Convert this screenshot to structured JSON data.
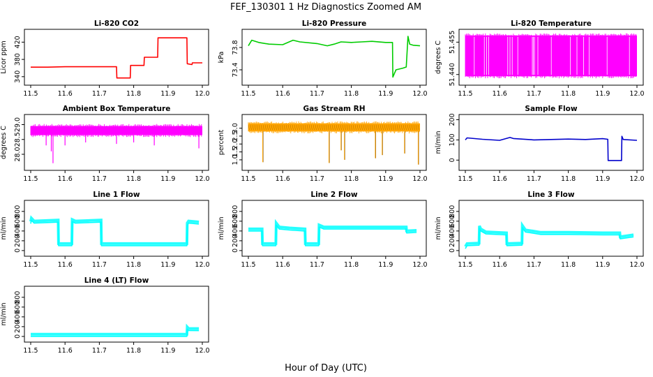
{
  "title": "FEF_130301  1 Hz Diagnostics Zoomed AM",
  "xlabel": "Hour of Day (UTC)",
  "x_ticks": [
    "11.5",
    "11.6",
    "11.7",
    "11.8",
    "11.9",
    "12.0"
  ],
  "chart_data": [
    {
      "type": "line",
      "title": "Li-820 CO2",
      "ylabel": "Licor ppm",
      "color": "#ff0000",
      "xlim": [
        11.5,
        12.0
      ],
      "ylim": [
        330,
        440
      ],
      "y_ticks": [
        "340",
        "380",
        "420"
      ],
      "series": [
        {
          "x": [
            11.5,
            11.55,
            11.6,
            11.65,
            11.7,
            11.75,
            11.751,
            11.79,
            11.791,
            11.83,
            11.831,
            11.87,
            11.871,
            11.955,
            11.956,
            11.97,
            11.971,
            12.0
          ],
          "y": [
            362,
            362,
            363,
            363,
            363,
            363,
            337,
            337,
            366,
            366,
            385,
            385,
            430,
            430,
            370,
            368,
            372,
            372
          ]
        }
      ]
    },
    {
      "type": "line",
      "title": "Li-820 Pressure",
      "ylabel": "kPa",
      "color": "#00cc00",
      "xlim": [
        11.5,
        12.0
      ],
      "ylim": [
        73.2,
        74.05
      ],
      "y_ticks": [
        "73.4",
        "73.8"
      ],
      "series": [
        {
          "x": [
            11.5,
            11.51,
            11.53,
            11.56,
            11.6,
            11.63,
            11.65,
            11.7,
            11.73,
            11.75,
            11.77,
            11.8,
            11.83,
            11.86,
            11.9,
            11.92,
            11.921,
            11.93,
            11.95,
            11.96,
            11.965,
            11.97,
            11.98,
            12.0
          ],
          "y": [
            73.83,
            73.93,
            73.89,
            73.86,
            73.85,
            73.93,
            73.9,
            73.87,
            73.83,
            73.86,
            73.9,
            73.89,
            73.9,
            73.91,
            73.89,
            73.89,
            73.27,
            73.4,
            73.43,
            73.45,
            74.0,
            73.86,
            73.84,
            73.83
          ]
        }
      ]
    },
    {
      "type": "line",
      "title": "Li-820 Temperature",
      "ylabel": "degrees C",
      "color": "#ff00ff",
      "xlim": [
        11.5,
        12.0
      ],
      "ylim": [
        51.437,
        51.459
      ],
      "y_ticks": [
        "51.440",
        "51.455"
      ],
      "series": [
        {
          "name": "band",
          "x": [
            11.5,
            12.0
          ],
          "y": [
            51.4392,
            51.4581
          ]
        }
      ]
    },
    {
      "type": "line",
      "title": "Ambient Box Temperature",
      "ylabel": "degrees C",
      "color": "#ff00ff",
      "xlim": [
        11.5,
        12.0
      ],
      "ylim": [
        27.6,
        29.2
      ],
      "y_ticks": [
        "28.0",
        "28.5",
        "29.0"
      ],
      "series": [
        {
          "name": "band",
          "x": [
            11.5,
            12.0
          ],
          "y": [
            28.65,
            28.95
          ]
        }
      ],
      "dips": [
        {
          "x": [
            11.545,
            11.56,
            11.565,
            11.6,
            11.66,
            11.75,
            11.8,
            11.86,
            11.99
          ],
          "y": [
            28.3,
            28.1,
            27.7,
            28.3,
            28.4,
            28.35,
            28.4,
            28.3,
            28.2
          ]
        }
      ]
    },
    {
      "type": "line",
      "title": "Gas Stream RH",
      "ylabel": "percent",
      "color": "#ffa500",
      "xlim": [
        11.5,
        12.0
      ],
      "ylim": [
        0.6,
        3.6
      ],
      "y_ticks": [
        "1.0",
        "1.5",
        "2.0",
        "2.5",
        "3.0"
      ],
      "series": [
        {
          "name": "band",
          "x": [
            11.5,
            12.0
          ],
          "y": [
            2.8,
            3.3
          ]
        }
      ],
      "dips": [
        {
          "x": [
            11.542,
            11.735,
            11.77,
            11.78,
            11.87,
            11.89,
            11.955,
            11.995
          ],
          "y": [
            0.85,
            0.8,
            1.6,
            1.0,
            1.1,
            1.3,
            1.4,
            0.7
          ]
        }
      ]
    },
    {
      "type": "line",
      "title": "Sample Flow",
      "ylabel": "ml/min",
      "color": "#0000cc",
      "xlim": [
        11.5,
        12.0
      ],
      "ylim": [
        -30,
        205
      ],
      "y_ticks": [
        "0",
        "100",
        "200"
      ],
      "series": [
        {
          "x": [
            11.5,
            11.505,
            11.55,
            11.6,
            11.63,
            11.64,
            11.7,
            11.75,
            11.8,
            11.85,
            11.9,
            11.915,
            11.916,
            11.955,
            11.956,
            11.96,
            12.0
          ],
          "y": [
            100,
            110,
            103,
            98,
            112,
            107,
            100,
            102,
            104,
            102,
            106,
            103,
            -2,
            -2,
            118,
            102,
            98
          ]
        }
      ]
    },
    {
      "type": "line",
      "title": "Line 1 Flow",
      "ylabel": "ml/min",
      "color": "#00ffff",
      "xlim": [
        11.5,
        12.0
      ],
      "ylim": [
        -30,
        940
      ],
      "y_ticks": [
        "0",
        "200",
        "400",
        "600",
        "800"
      ],
      "series": [
        {
          "x": [
            11.5,
            11.502,
            11.51,
            11.58,
            11.581,
            11.62,
            11.621,
            11.63,
            11.705,
            11.706,
            11.955,
            11.956,
            11.96,
            11.99
          ],
          "y": [
            550,
            620,
            560,
            580,
            100,
            100,
            590,
            560,
            580,
            100,
            100,
            520,
            560,
            540
          ]
        }
      ]
    },
    {
      "type": "line",
      "title": "Line 2 Flow",
      "ylabel": "ml/min",
      "color": "#00ffff",
      "xlim": [
        11.5,
        12.0
      ],
      "ylim": [
        -30,
        940
      ],
      "y_ticks": [
        "0",
        "200",
        "400",
        "600",
        "800"
      ],
      "series": [
        {
          "x": [
            11.5,
            11.54,
            11.541,
            11.58,
            11.581,
            11.59,
            11.62,
            11.665,
            11.666,
            11.705,
            11.706,
            11.72,
            11.96,
            11.961,
            11.99
          ],
          "y": [
            400,
            400,
            100,
            100,
            520,
            440,
            420,
            400,
            100,
            100,
            480,
            440,
            440,
            360,
            370
          ]
        }
      ]
    },
    {
      "type": "line",
      "title": "Line 3 Flow",
      "ylabel": "ml/min",
      "color": "#00ffff",
      "xlim": [
        11.5,
        12.0
      ],
      "ylim": [
        -30,
        940
      ],
      "y_ticks": [
        "0",
        "200",
        "400",
        "600",
        "800"
      ],
      "series": [
        {
          "x": [
            11.5,
            11.505,
            11.54,
            11.541,
            11.545,
            11.56,
            11.62,
            11.621,
            11.665,
            11.666,
            11.675,
            11.72,
            11.8,
            11.9,
            11.95,
            11.951,
            11.99
          ],
          "y": [
            40,
            100,
            110,
            460,
            400,
            340,
            320,
            100,
            110,
            470,
            380,
            330,
            330,
            320,
            320,
            240,
            280
          ]
        }
      ]
    },
    {
      "type": "line",
      "title": "Line 4 (LT) Flow",
      "ylabel": "ml/min",
      "color": "#00ffff",
      "xlim": [
        11.5,
        12.0
      ],
      "ylim": [
        -30,
        940
      ],
      "y_ticks": [
        "0",
        "200",
        "400",
        "600",
        "800"
      ],
      "series": [
        {
          "x": [
            11.5,
            11.6,
            11.7,
            11.8,
            11.9,
            11.955,
            11.956,
            11.96,
            11.99
          ],
          "y": [
            2,
            2,
            2,
            2,
            2,
            2,
            150,
            120,
            118
          ]
        }
      ]
    }
  ]
}
